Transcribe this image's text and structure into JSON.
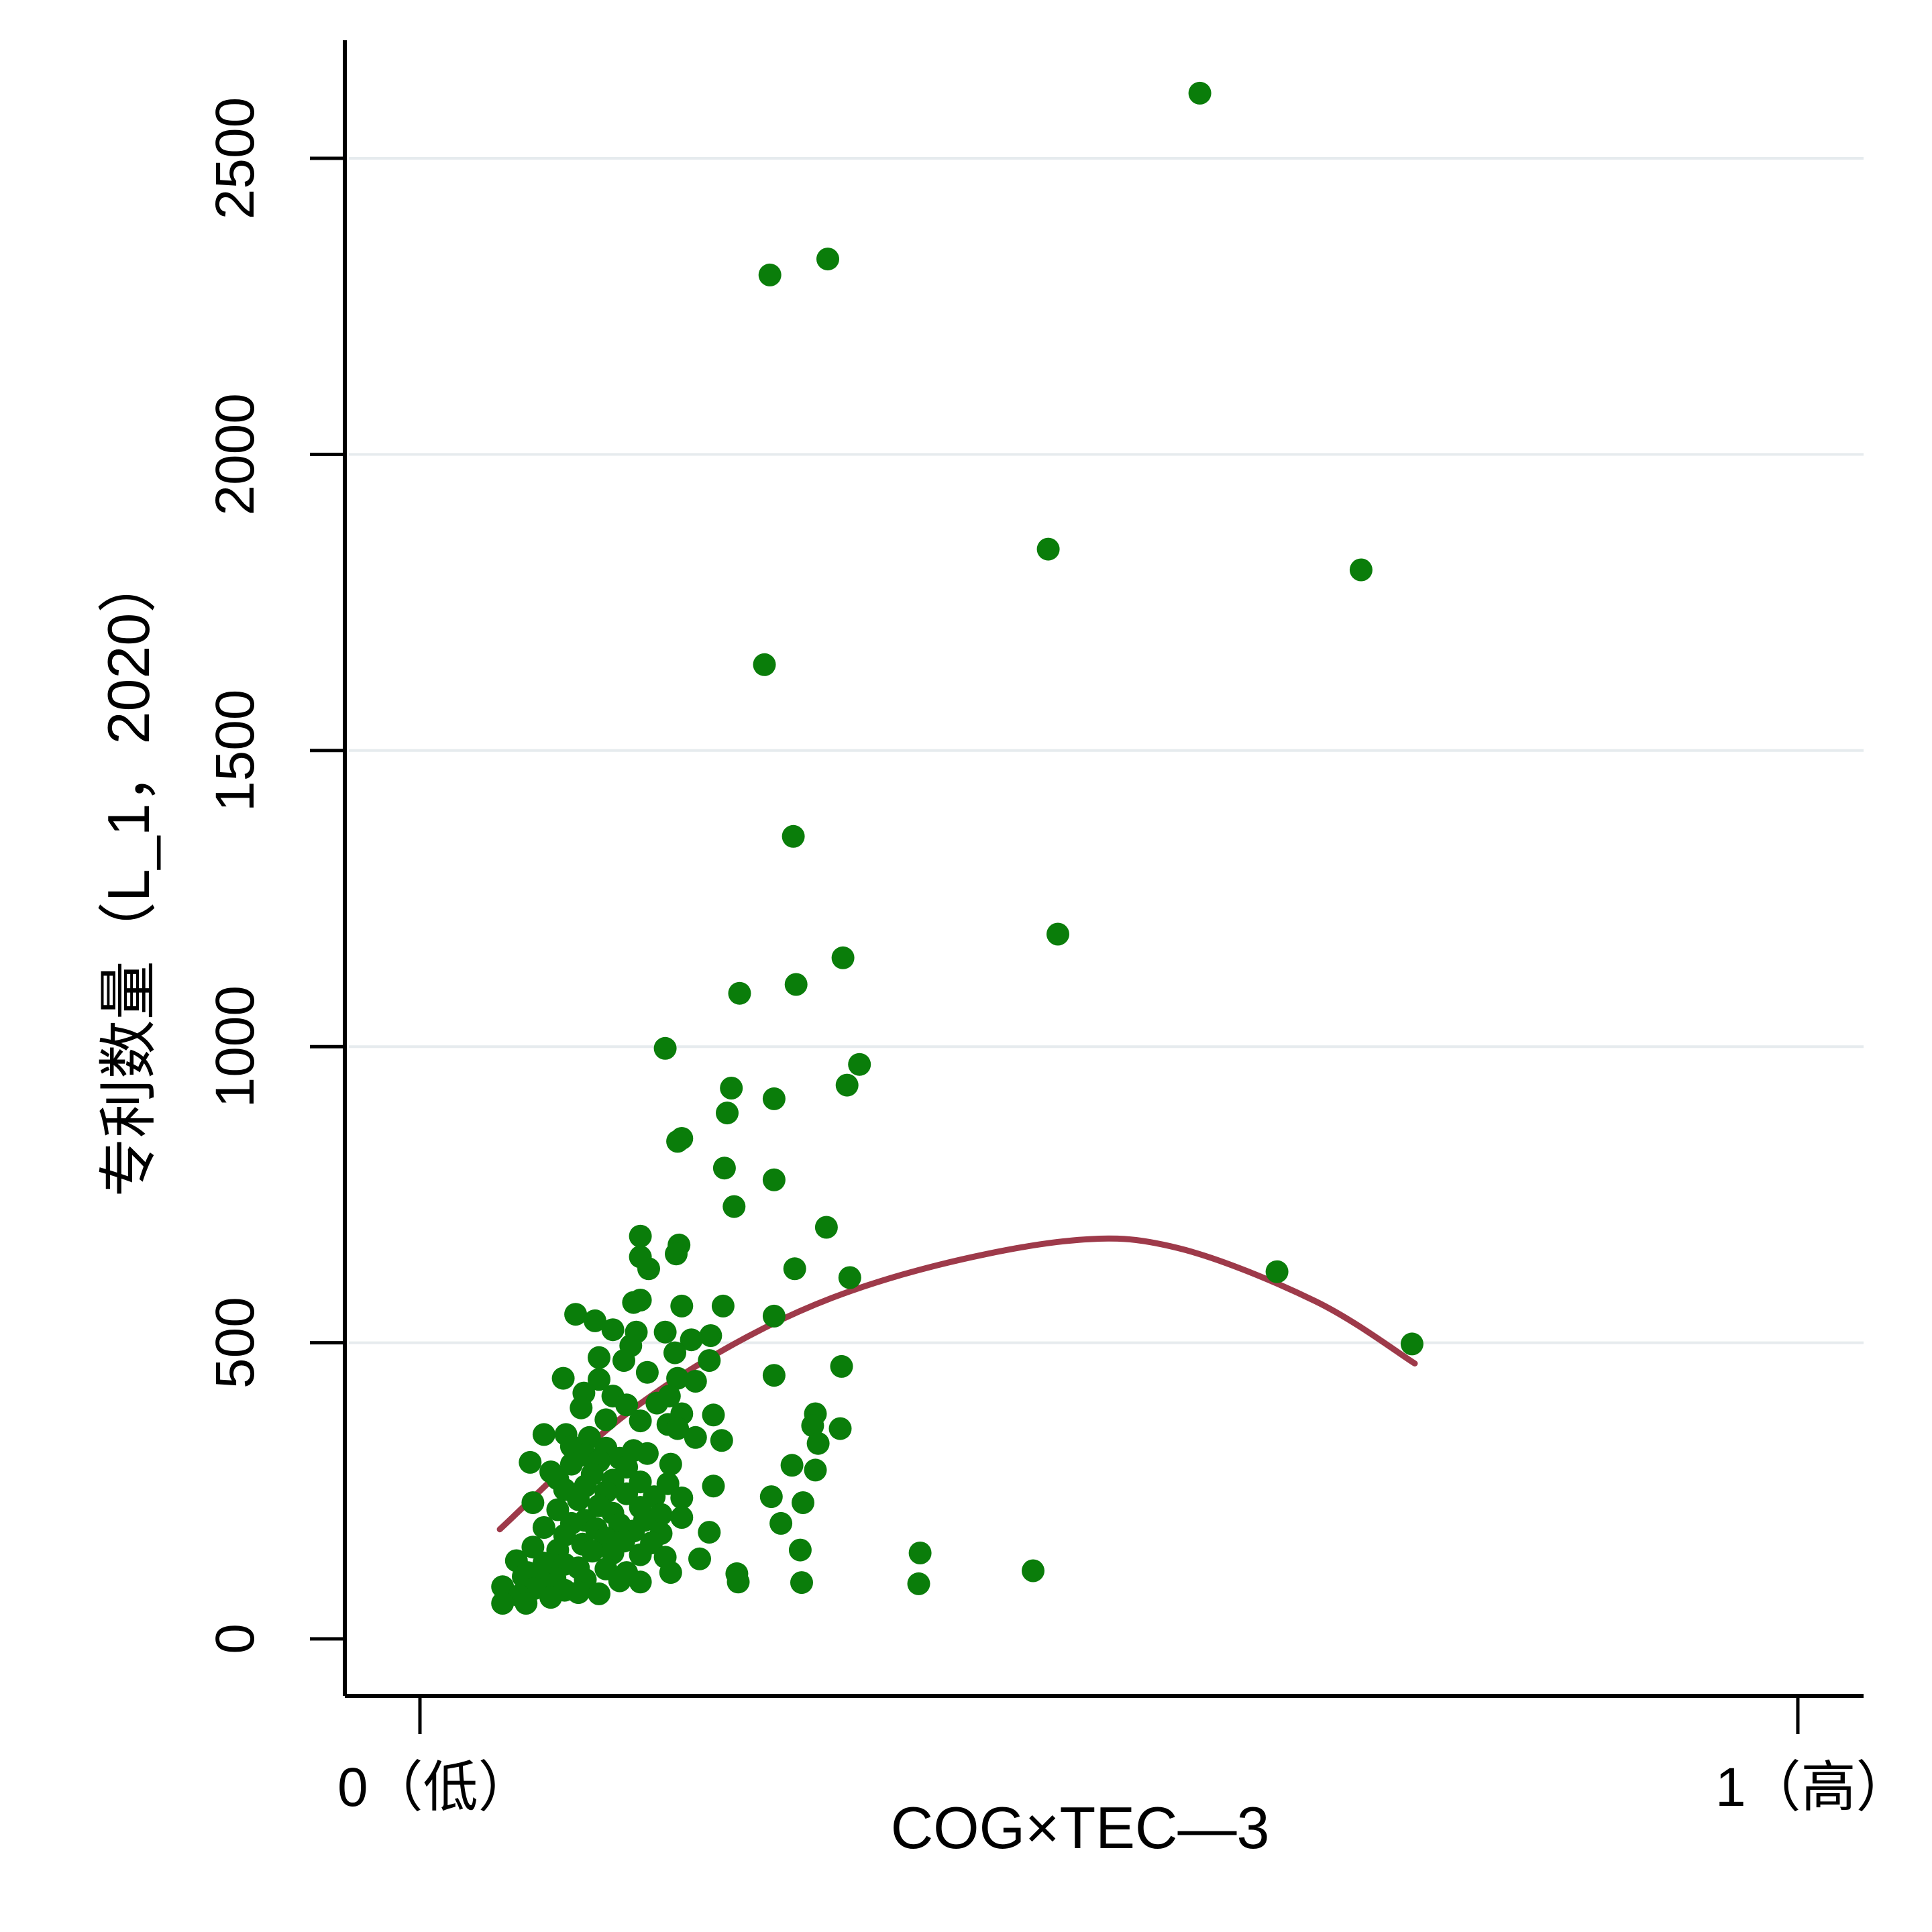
{
  "chart_data": {
    "type": "scatter",
    "title": "",
    "xlabel": "COG×TEC—3",
    "ylabel": "专利数量（L_1，2020）",
    "xlim": [
      0,
      1
    ],
    "ylim": [
      -100,
      2750
    ],
    "x_ticks": [
      {
        "value": 0,
        "label": "0（低）"
      },
      {
        "value": 1,
        "label": "1（高）"
      }
    ],
    "y_ticks": [
      0,
      500,
      1000,
      1500,
      2000,
      2500
    ],
    "grid": "horizontal",
    "legend": "none",
    "colors": {
      "points": "#0a7d0a",
      "fit_line": "#9e3a4a",
      "grid": "#e6ebee",
      "axis": "#000000"
    },
    "series": [
      {
        "type": "scatter",
        "points": [
          [
            0.566,
            2610
          ],
          [
            0.296,
            2330
          ],
          [
            0.254,
            2303
          ],
          [
            0.456,
            1840
          ],
          [
            0.683,
            1805
          ],
          [
            0.25,
            1645
          ],
          [
            0.271,
            1355
          ],
          [
            0.463,
            1190
          ],
          [
            0.307,
            1150
          ],
          [
            0.273,
            1105
          ],
          [
            0.232,
            1090
          ],
          [
            0.178,
            997
          ],
          [
            0.319,
            970
          ],
          [
            0.226,
            930
          ],
          [
            0.31,
            935
          ],
          [
            0.257,
            912
          ],
          [
            0.223,
            888
          ],
          [
            0.19,
            845
          ],
          [
            0.187,
            840
          ],
          [
            0.221,
            795
          ],
          [
            0.257,
            775
          ],
          [
            0.228,
            730
          ],
          [
            0.295,
            695
          ],
          [
            0.16,
            680
          ],
          [
            0.188,
            665
          ],
          [
            0.186,
            650
          ],
          [
            0.16,
            645
          ],
          [
            0.166,
            625
          ],
          [
            0.272,
            625
          ],
          [
            0.312,
            610
          ],
          [
            0.622,
            620
          ],
          [
            0.72,
            498
          ],
          [
            0.113,
            548
          ],
          [
            0.127,
            537
          ],
          [
            0.155,
            568
          ],
          [
            0.16,
            572
          ],
          [
            0.22,
            562
          ],
          [
            0.19,
            562
          ],
          [
            0.257,
            545
          ],
          [
            0.14,
            522
          ],
          [
            0.157,
            518
          ],
          [
            0.178,
            518
          ],
          [
            0.211,
            512
          ],
          [
            0.197,
            505
          ],
          [
            0.153,
            495
          ],
          [
            0.185,
            483
          ],
          [
            0.13,
            475
          ],
          [
            0.148,
            470
          ],
          [
            0.21,
            470
          ],
          [
            0.165,
            450
          ],
          [
            0.187,
            440
          ],
          [
            0.104,
            440
          ],
          [
            0.13,
            438
          ],
          [
            0.2,
            435
          ],
          [
            0.257,
            445
          ],
          [
            0.306,
            460
          ],
          [
            0.119,
            415
          ],
          [
            0.14,
            410
          ],
          [
            0.181,
            410
          ],
          [
            0.172,
            398
          ],
          [
            0.15,
            395
          ],
          [
            0.117,
            390
          ],
          [
            0.19,
            380
          ],
          [
            0.213,
            378
          ],
          [
            0.287,
            380
          ],
          [
            0.135,
            370
          ],
          [
            0.16,
            368
          ],
          [
            0.18,
            362
          ],
          [
            0.187,
            355
          ],
          [
            0.285,
            360
          ],
          [
            0.305,
            355
          ],
          [
            0.09,
            345
          ],
          [
            0.106,
            345
          ],
          [
            0.123,
            340
          ],
          [
            0.2,
            340
          ],
          [
            0.219,
            335
          ],
          [
            0.289,
            330
          ],
          [
            0.11,
            325
          ],
          [
            0.135,
            322
          ],
          [
            0.155,
            318
          ],
          [
            0.165,
            313
          ],
          [
            0.12,
            310
          ],
          [
            0.145,
            305
          ],
          [
            0.13,
            300
          ],
          [
            0.08,
            298
          ],
          [
            0.11,
            295
          ],
          [
            0.15,
            290
          ],
          [
            0.182,
            295
          ],
          [
            0.27,
            293
          ],
          [
            0.287,
            285
          ],
          [
            0.095,
            282
          ],
          [
            0.125,
            278
          ],
          [
            0.1,
            270
          ],
          [
            0.14,
            268
          ],
          [
            0.16,
            265
          ],
          [
            0.18,
            262
          ],
          [
            0.12,
            258
          ],
          [
            0.213,
            258
          ],
          [
            0.105,
            252
          ],
          [
            0.135,
            248
          ],
          [
            0.15,
            245
          ],
          [
            0.17,
            240
          ],
          [
            0.19,
            238
          ],
          [
            0.115,
            235
          ],
          [
            0.255,
            240
          ],
          [
            0.278,
            230
          ],
          [
            0.082,
            230
          ],
          [
            0.13,
            225
          ],
          [
            0.16,
            222
          ],
          [
            0.1,
            218
          ],
          [
            0.14,
            212
          ],
          [
            0.175,
            210
          ],
          [
            0.19,
            205
          ],
          [
            0.12,
            200
          ],
          [
            0.163,
            200
          ],
          [
            0.11,
            195
          ],
          [
            0.145,
            193
          ],
          [
            0.09,
            188
          ],
          [
            0.128,
            186
          ],
          [
            0.155,
            182
          ],
          [
            0.175,
            178
          ],
          [
            0.105,
            175
          ],
          [
            0.21,
            180
          ],
          [
            0.262,
            195
          ],
          [
            0.135,
            170
          ],
          [
            0.148,
            165
          ],
          [
            0.168,
            162
          ],
          [
            0.118,
            160
          ],
          [
            0.082,
            155
          ],
          [
            0.1,
            150
          ],
          [
            0.125,
            148
          ],
          [
            0.14,
            145
          ],
          [
            0.16,
            142
          ],
          [
            0.178,
            138
          ],
          [
            0.203,
            135
          ],
          [
            0.276,
            150
          ],
          [
            0.363,
            145
          ],
          [
            0.07,
            132
          ],
          [
            0.09,
            128
          ],
          [
            0.105,
            126
          ],
          [
            0.115,
            120
          ],
          [
            0.135,
            118
          ],
          [
            0.15,
            112
          ],
          [
            0.182,
            112
          ],
          [
            0.078,
            112
          ],
          [
            0.23,
            110
          ],
          [
            0.075,
            105
          ],
          [
            0.098,
            102
          ],
          [
            0.12,
            100
          ],
          [
            0.145,
            98
          ],
          [
            0.16,
            96
          ],
          [
            0.09,
            94
          ],
          [
            0.231,
            96
          ],
          [
            0.277,
            95
          ],
          [
            0.362,
            93
          ],
          [
            0.445,
            115
          ],
          [
            0.06,
            88
          ],
          [
            0.083,
            85
          ],
          [
            0.105,
            82
          ],
          [
            0.115,
            78
          ],
          [
            0.13,
            76
          ],
          [
            0.072,
            73
          ],
          [
            0.095,
            70
          ],
          [
            0.06,
            60
          ],
          [
            0.077,
            60
          ]
        ]
      },
      {
        "type": "line",
        "name": "",
        "x": [
          0.058,
          0.15,
          0.25,
          0.35,
          0.47,
          0.55,
          0.65,
          0.722
        ],
        "y": [
          185,
          380,
          525,
          615,
          672,
          660,
          570,
          465
        ]
      }
    ]
  }
}
